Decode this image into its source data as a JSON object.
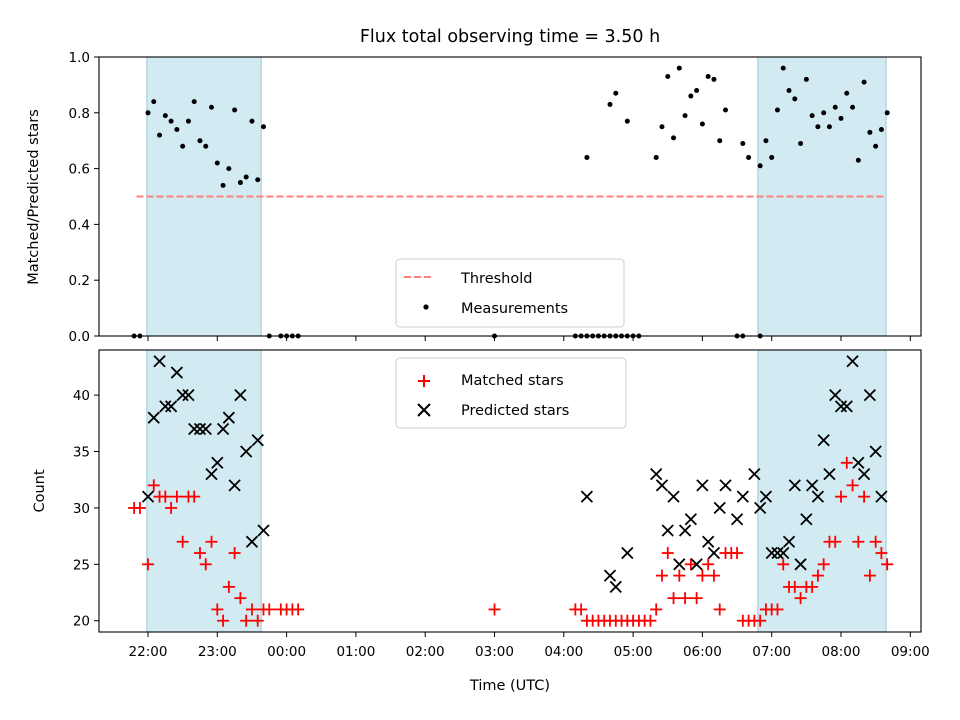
{
  "chart_data": [
    {
      "type": "scatter",
      "title": "Flux total observing time = 3.50 h",
      "xlabel": "",
      "ylabel": "Matched/Predicted stars",
      "ylim": [
        0,
        1.0
      ],
      "yticks": [
        "0.0",
        "0.2",
        "0.4",
        "0.6",
        "0.8",
        "1.0"
      ],
      "shaded_regions": [
        [
          "21:59",
          "23:38"
        ],
        [
          "06:48",
          "08:39"
        ]
      ],
      "shade_color": "#add8e6",
      "legend_location": "lower center",
      "series": [
        {
          "name": "Threshold",
          "kind": "dashed-line",
          "color": "#ff7f7f",
          "x": [
            "21:50",
            "08:39"
          ],
          "y": [
            0.5,
            0.5
          ]
        },
        {
          "name": "Measurements",
          "kind": "dots",
          "color": "#000000",
          "points": [
            [
              "21:48",
              0.0
            ],
            [
              "21:53",
              0.0
            ],
            [
              "22:00",
              0.8
            ],
            [
              "22:05",
              0.84
            ],
            [
              "22:10",
              0.72
            ],
            [
              "22:15",
              0.79
            ],
            [
              "22:20",
              0.77
            ],
            [
              "22:25",
              0.74
            ],
            [
              "22:30",
              0.68
            ],
            [
              "22:35",
              0.77
            ],
            [
              "22:40",
              0.84
            ],
            [
              "22:45",
              0.7
            ],
            [
              "22:50",
              0.68
            ],
            [
              "22:55",
              0.82
            ],
            [
              "23:00",
              0.62
            ],
            [
              "23:05",
              0.54
            ],
            [
              "23:10",
              0.6
            ],
            [
              "23:15",
              0.81
            ],
            [
              "23:20",
              0.55
            ],
            [
              "23:25",
              0.57
            ],
            [
              "23:30",
              0.77
            ],
            [
              "23:35",
              0.56
            ],
            [
              "23:40",
              0.75
            ],
            [
              "23:45",
              0.0
            ],
            [
              "23:55",
              0.0
            ],
            [
              "00:00",
              0.0
            ],
            [
              "00:05",
              0.0
            ],
            [
              "00:10",
              0.0
            ],
            [
              "03:00",
              0.0
            ],
            [
              "04:10",
              0.0
            ],
            [
              "04:15",
              0.0
            ],
            [
              "04:20",
              0.0
            ],
            [
              "04:25",
              0.0
            ],
            [
              "04:30",
              0.0
            ],
            [
              "04:35",
              0.0
            ],
            [
              "04:40",
              0.0
            ],
            [
              "04:45",
              0.0
            ],
            [
              "04:50",
              0.0
            ],
            [
              "04:55",
              0.0
            ],
            [
              "05:00",
              0.0
            ],
            [
              "05:05",
              0.0
            ],
            [
              "04:20",
              0.64
            ],
            [
              "04:40",
              0.83
            ],
            [
              "04:45",
              0.87
            ],
            [
              "04:55",
              0.77
            ],
            [
              "05:20",
              0.64
            ],
            [
              "05:25",
              0.75
            ],
            [
              "05:30",
              0.93
            ],
            [
              "05:35",
              0.71
            ],
            [
              "05:40",
              0.96
            ],
            [
              "05:45",
              0.79
            ],
            [
              "05:50",
              0.86
            ],
            [
              "05:55",
              0.88
            ],
            [
              "06:00",
              0.76
            ],
            [
              "06:05",
              0.93
            ],
            [
              "06:10",
              0.92
            ],
            [
              "06:15",
              0.7
            ],
            [
              "06:20",
              0.81
            ],
            [
              "06:30",
              0.0
            ],
            [
              "06:35",
              0.0
            ],
            [
              "06:50",
              0.0
            ],
            [
              "06:35",
              0.69
            ],
            [
              "06:40",
              0.64
            ],
            [
              "06:50",
              0.61
            ],
            [
              "06:55",
              0.7
            ],
            [
              "07:00",
              0.64
            ],
            [
              "07:05",
              0.81
            ],
            [
              "07:10",
              0.96
            ],
            [
              "07:15",
              0.88
            ],
            [
              "07:20",
              0.85
            ],
            [
              "07:25",
              0.69
            ],
            [
              "07:30",
              0.92
            ],
            [
              "07:35",
              0.79
            ],
            [
              "07:40",
              0.75
            ],
            [
              "07:45",
              0.8
            ],
            [
              "07:50",
              0.75
            ],
            [
              "07:55",
              0.82
            ],
            [
              "08:00",
              0.78
            ],
            [
              "08:05",
              0.87
            ],
            [
              "08:10",
              0.82
            ],
            [
              "08:15",
              0.63
            ],
            [
              "08:20",
              0.91
            ],
            [
              "08:25",
              0.73
            ],
            [
              "08:30",
              0.68
            ],
            [
              "08:35",
              0.74
            ],
            [
              "08:40",
              0.8
            ]
          ]
        }
      ]
    },
    {
      "type": "scatter",
      "title": "",
      "xlabel": "Time (UTC)",
      "ylabel": "Count",
      "ylim": [
        19,
        44
      ],
      "yticks": [
        "20",
        "25",
        "30",
        "35",
        "40"
      ],
      "xticks": [
        "22:00",
        "23:00",
        "00:00",
        "01:00",
        "02:00",
        "03:00",
        "04:00",
        "05:00",
        "06:00",
        "07:00",
        "08:00",
        "09:00"
      ],
      "shaded_regions": [
        [
          "21:59",
          "23:38"
        ],
        [
          "06:48",
          "08:39"
        ]
      ],
      "legend_location": "upper center",
      "series": [
        {
          "name": "Matched stars",
          "marker": "+",
          "color": "#ff0000",
          "points": [
            [
              "21:48",
              30
            ],
            [
              "21:53",
              30
            ],
            [
              "22:00",
              25
            ],
            [
              "22:05",
              32
            ],
            [
              "22:10",
              31
            ],
            [
              "22:15",
              31
            ],
            [
              "22:20",
              30
            ],
            [
              "22:25",
              31
            ],
            [
              "22:30",
              27
            ],
            [
              "22:35",
              31
            ],
            [
              "22:40",
              31
            ],
            [
              "22:45",
              26
            ],
            [
              "22:50",
              25
            ],
            [
              "22:55",
              27
            ],
            [
              "23:00",
              21
            ],
            [
              "23:05",
              20
            ],
            [
              "23:10",
              23
            ],
            [
              "23:15",
              26
            ],
            [
              "23:20",
              22
            ],
            [
              "23:25",
              20
            ],
            [
              "23:30",
              21
            ],
            [
              "23:35",
              20
            ],
            [
              "23:40",
              21
            ],
            [
              "23:45",
              21
            ],
            [
              "23:55",
              21
            ],
            [
              "00:00",
              21
            ],
            [
              "00:05",
              21
            ],
            [
              "00:10",
              21
            ],
            [
              "03:00",
              21
            ],
            [
              "04:10",
              21
            ],
            [
              "04:15",
              21
            ],
            [
              "04:20",
              20
            ],
            [
              "04:25",
              20
            ],
            [
              "04:30",
              20
            ],
            [
              "04:35",
              20
            ],
            [
              "04:40",
              20
            ],
            [
              "04:45",
              20
            ],
            [
              "04:50",
              20
            ],
            [
              "04:55",
              20
            ],
            [
              "05:00",
              20
            ],
            [
              "05:05",
              20
            ],
            [
              "05:10",
              20
            ],
            [
              "05:15",
              20
            ],
            [
              "05:20",
              21
            ],
            [
              "05:25",
              24
            ],
            [
              "05:30",
              26
            ],
            [
              "05:35",
              22
            ],
            [
              "05:40",
              24
            ],
            [
              "05:45",
              22
            ],
            [
              "05:50",
              25
            ],
            [
              "05:55",
              22
            ],
            [
              "06:00",
              24
            ],
            [
              "06:05",
              25
            ],
            [
              "06:10",
              24
            ],
            [
              "06:15",
              21
            ],
            [
              "06:20",
              26
            ],
            [
              "06:25",
              26
            ],
            [
              "06:30",
              26
            ],
            [
              "06:35",
              20
            ],
            [
              "06:40",
              20
            ],
            [
              "06:45",
              20
            ],
            [
              "06:50",
              20
            ],
            [
              "06:55",
              21
            ],
            [
              "07:00",
              21
            ],
            [
              "07:05",
              21
            ],
            [
              "07:10",
              25
            ],
            [
              "07:15",
              23
            ],
            [
              "07:20",
              23
            ],
            [
              "07:25",
              22
            ],
            [
              "07:30",
              23
            ],
            [
              "07:35",
              23
            ],
            [
              "07:40",
              24
            ],
            [
              "07:45",
              25
            ],
            [
              "07:50",
              27
            ],
            [
              "07:55",
              27
            ],
            [
              "08:00",
              31
            ],
            [
              "08:05",
              34
            ],
            [
              "08:10",
              32
            ],
            [
              "08:15",
              27
            ],
            [
              "08:20",
              31
            ],
            [
              "08:25",
              24
            ],
            [
              "08:30",
              27
            ],
            [
              "08:35",
              26
            ],
            [
              "08:40",
              25
            ]
          ]
        },
        {
          "name": "Predicted stars",
          "marker": "x",
          "color": "#000000",
          "points": [
            [
              "22:00",
              31
            ],
            [
              "22:05",
              38
            ],
            [
              "22:10",
              43
            ],
            [
              "22:15",
              39
            ],
            [
              "22:20",
              39
            ],
            [
              "22:25",
              42
            ],
            [
              "22:30",
              40
            ],
            [
              "22:35",
              40
            ],
            [
              "22:40",
              37
            ],
            [
              "22:45",
              37
            ],
            [
              "22:50",
              37
            ],
            [
              "22:55",
              33
            ],
            [
              "23:00",
              34
            ],
            [
              "23:05",
              37
            ],
            [
              "23:10",
              38
            ],
            [
              "23:15",
              32
            ],
            [
              "23:20",
              40
            ],
            [
              "23:25",
              35
            ],
            [
              "23:30",
              27
            ],
            [
              "23:35",
              36
            ],
            [
              "23:40",
              28
            ],
            [
              "04:20",
              31
            ],
            [
              "04:40",
              24
            ],
            [
              "04:45",
              23
            ],
            [
              "04:55",
              26
            ],
            [
              "05:20",
              33
            ],
            [
              "05:25",
              32
            ],
            [
              "05:30",
              28
            ],
            [
              "05:35",
              31
            ],
            [
              "05:40",
              25
            ],
            [
              "05:45",
              28
            ],
            [
              "05:50",
              29
            ],
            [
              "05:55",
              25
            ],
            [
              "06:00",
              32
            ],
            [
              "06:05",
              27
            ],
            [
              "06:10",
              26
            ],
            [
              "06:15",
              30
            ],
            [
              "06:20",
              32
            ],
            [
              "06:30",
              29
            ],
            [
              "06:35",
              31
            ],
            [
              "06:45",
              33
            ],
            [
              "06:50",
              30
            ],
            [
              "06:55",
              31
            ],
            [
              "07:00",
              26
            ],
            [
              "07:05",
              26
            ],
            [
              "07:10",
              26
            ],
            [
              "07:15",
              27
            ],
            [
              "07:20",
              32
            ],
            [
              "07:25",
              25
            ],
            [
              "07:30",
              29
            ],
            [
              "07:35",
              32
            ],
            [
              "07:40",
              31
            ],
            [
              "07:45",
              36
            ],
            [
              "07:50",
              33
            ],
            [
              "07:55",
              40
            ],
            [
              "08:00",
              39
            ],
            [
              "08:05",
              39
            ],
            [
              "08:10",
              43
            ],
            [
              "08:15",
              34
            ],
            [
              "08:20",
              33
            ],
            [
              "08:25",
              40
            ],
            [
              "08:30",
              35
            ],
            [
              "08:35",
              31
            ]
          ]
        }
      ]
    }
  ]
}
